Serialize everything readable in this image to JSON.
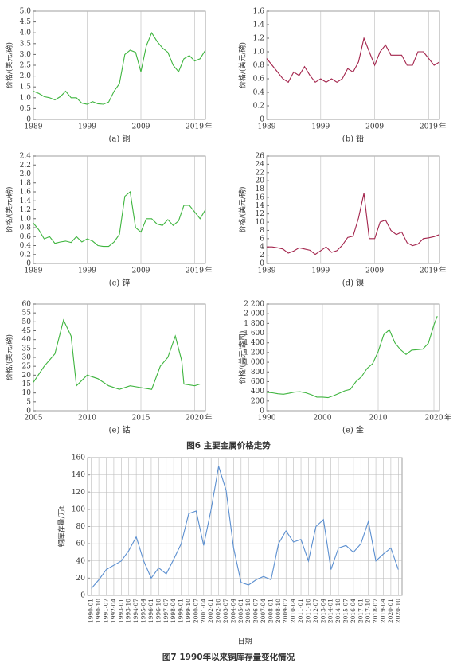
{
  "figure_captions": [
    "图6 主要金属价格走势",
    "图7 1990年以来铜库存量变化情况"
  ],
  "chart_data": [
    {
      "type": "line",
      "caption": "(a) 铜",
      "y_label": "价格/(美元/磅)",
      "x_unit": "年",
      "color": "#3fb53f",
      "grid": "x",
      "x": [
        1989,
        1990,
        1991,
        1992,
        1993,
        1994,
        1995,
        1996,
        1997,
        1998,
        1999,
        2000,
        2001,
        2002,
        2003,
        2004,
        2005,
        2006,
        2007,
        2008,
        2009,
        2010,
        2011,
        2012,
        2013,
        2014,
        2015,
        2016,
        2017,
        2018,
        2019,
        2020,
        2021
      ],
      "values": [
        1.3,
        1.2,
        1.05,
        1.0,
        0.9,
        1.05,
        1.3,
        1.0,
        1.0,
        0.75,
        0.7,
        0.82,
        0.72,
        0.7,
        0.8,
        1.3,
        1.65,
        3.0,
        3.2,
        3.1,
        2.2,
        3.4,
        4.0,
        3.6,
        3.3,
        3.1,
        2.5,
        2.2,
        2.8,
        2.95,
        2.7,
        2.8,
        3.2
      ],
      "xlim": [
        1989,
        2021
      ],
      "xticks": [
        1989,
        1999,
        2009,
        2019
      ],
      "ylim": [
        0,
        5
      ],
      "yticks": [
        0,
        0.5,
        {
          "value": 1,
          "label": "1.0"
        },
        1.5,
        {
          "value": 2,
          "label": "2.0"
        },
        2.5,
        {
          "value": 3,
          "label": "3.0"
        },
        3.5,
        {
          "value": 4,
          "label": "4.0"
        },
        4.5,
        {
          "value": 5,
          "label": "5.0"
        }
      ]
    },
    {
      "type": "line",
      "caption": "(b) 铅",
      "y_label": "价格/(美元/磅)",
      "x_unit": "年",
      "color": "#a3244c",
      "grid": "x",
      "x": [
        1989,
        1990,
        1991,
        1992,
        1993,
        1994,
        1995,
        1996,
        1997,
        1998,
        1999,
        2000,
        2001,
        2002,
        2003,
        2004,
        2005,
        2006,
        2007,
        2008,
        2009,
        2010,
        2011,
        2012,
        2013,
        2014,
        2015,
        2016,
        2017,
        2018,
        2019,
        2020,
        2021
      ],
      "values": [
        0.9,
        0.8,
        0.7,
        0.6,
        0.55,
        0.7,
        0.65,
        0.78,
        0.65,
        0.55,
        0.6,
        0.55,
        0.6,
        0.55,
        0.6,
        0.75,
        0.7,
        0.85,
        1.2,
        1.0,
        0.8,
        1.0,
        1.1,
        0.95,
        0.95,
        0.95,
        0.8,
        0.8,
        1.0,
        1.0,
        0.9,
        0.8,
        0.85
      ],
      "xlim": [
        1989,
        2021
      ],
      "xticks": [
        1989,
        1999,
        2009,
        2019
      ],
      "ylim": [
        0,
        1.6
      ],
      "yticks": [
        0,
        0.2,
        0.4,
        0.6,
        0.8,
        {
          "value": 1,
          "label": "1.0"
        },
        1.2,
        1.4,
        1.6
      ]
    },
    {
      "type": "line",
      "caption": "(c) 锌",
      "y_label": "价格/(美元/磅)",
      "x_unit": "年",
      "color": "#3fb53f",
      "grid": "x",
      "x": [
        1989,
        1990,
        1991,
        1992,
        1993,
        1994,
        1995,
        1996,
        1997,
        1998,
        1999,
        2000,
        2001,
        2002,
        2003,
        2004,
        2005,
        2006,
        2007,
        2008,
        2009,
        2010,
        2011,
        2012,
        2013,
        2014,
        2015,
        2016,
        2017,
        2018,
        2019,
        2020,
        2021
      ],
      "values": [
        0.9,
        0.75,
        0.55,
        0.6,
        0.45,
        0.48,
        0.5,
        0.47,
        0.6,
        0.48,
        0.55,
        0.5,
        0.4,
        0.38,
        0.38,
        0.48,
        0.65,
        1.5,
        1.6,
        0.8,
        0.7,
        1.0,
        1.0,
        0.88,
        0.85,
        0.98,
        0.85,
        0.95,
        1.3,
        1.3,
        1.15,
        1.0,
        1.2
      ],
      "xlim": [
        1989,
        2021
      ],
      "xticks": [
        1989,
        1999,
        2009,
        2019
      ],
      "ylim": [
        0,
        2.4
      ],
      "yticks": [
        0,
        0.2,
        0.4,
        0.6,
        0.8,
        {
          "value": 1,
          "label": "1.0"
        },
        1.2,
        1.4,
        1.6,
        1.8,
        {
          "value": 2,
          "label": "2.0"
        },
        2.2,
        2.4
      ]
    },
    {
      "type": "line",
      "caption": "(d) 镍",
      "y_label": "价格/(美元/磅)",
      "x_unit": "年",
      "color": "#a3244c",
      "grid": "x",
      "x": [
        1989,
        1990,
        1991,
        1992,
        1993,
        1994,
        1995,
        1996,
        1997,
        1998,
        1999,
        2000,
        2001,
        2002,
        2003,
        2004,
        2005,
        2006,
        2007,
        2008,
        2009,
        2010,
        2011,
        2012,
        2013,
        2014,
        2015,
        2016,
        2017,
        2018,
        2019,
        2020,
        2021
      ],
      "values": [
        4,
        4,
        3.8,
        3.5,
        2.5,
        3,
        3.8,
        3.5,
        3.2,
        2.2,
        3.1,
        4,
        2.7,
        3.1,
        4.4,
        6.3,
        6.6,
        11,
        17,
        6,
        6,
        10,
        10.5,
        8,
        7,
        7.6,
        5,
        4.3,
        4.7,
        6,
        6.2,
        6.5,
        7
      ],
      "xlim": [
        1989,
        2021
      ],
      "xticks": [
        1989,
        1999,
        2009,
        2019
      ],
      "ylim": [
        0,
        26
      ],
      "yticks": [
        0,
        2,
        4,
        6,
        8,
        10,
        12,
        14,
        16,
        18,
        20,
        22,
        24,
        26
      ]
    },
    {
      "type": "line",
      "caption": "(e) 钴",
      "y_label": "价格/(美元/磅)",
      "x_unit": "年",
      "color": "#3fb53f",
      "grid": "x",
      "x": [
        2005,
        2006,
        2007,
        2007.8,
        2008.5,
        2009,
        2010,
        2011,
        2012,
        2013,
        2014,
        2015,
        2016,
        2016.8,
        2017.5,
        2018.2,
        2018.8,
        2019,
        2020,
        2020.5
      ],
      "values": [
        16,
        25,
        32,
        51,
        42,
        14,
        20,
        18,
        14,
        12,
        14,
        13,
        12,
        25,
        30,
        42,
        28,
        15,
        14,
        15
      ],
      "xlim": [
        2005,
        2021
      ],
      "xticks": [
        2005,
        2010,
        2015,
        2020
      ],
      "ylim": [
        0,
        60
      ],
      "yticks": [
        0,
        5,
        10,
        15,
        20,
        25,
        30,
        35,
        40,
        45,
        50,
        55,
        60
      ]
    },
    {
      "type": "line",
      "caption": "(e) 金",
      "y_label": "价格/(美元/盎司)",
      "x_unit": "年",
      "color": "#3fb53f",
      "grid": "x",
      "x": [
        1990,
        1991,
        1992,
        1993,
        1994,
        1995,
        1996,
        1997,
        1998,
        1999,
        2000,
        2001,
        2002,
        2003,
        2004,
        2005,
        2006,
        2007,
        2008,
        2009,
        2010,
        2011,
        2012,
        2013,
        2014,
        2015,
        2016,
        2017,
        2018,
        2019,
        2020,
        2020.6
      ],
      "values": [
        380,
        370,
        350,
        340,
        360,
        385,
        390,
        370,
        330,
        280,
        280,
        270,
        310,
        360,
        410,
        440,
        600,
        700,
        870,
        970,
        1220,
        1570,
        1670,
        1400,
        1260,
        1160,
        1250,
        1260,
        1270,
        1390,
        1770,
        1950
      ],
      "xlim": [
        1990,
        2021
      ],
      "xticks": [
        1990,
        2000,
        2010,
        2020
      ],
      "ylim": [
        0,
        2200
      ],
      "yticks": [
        0,
        200,
        400,
        600,
        800,
        {
          "value": 1000,
          "label": "1 000"
        },
        {
          "value": 1200,
          "label": "1 200"
        },
        {
          "value": 1400,
          "label": "1 400"
        },
        {
          "value": 1600,
          "label": "1 600"
        },
        {
          "value": 1800,
          "label": "1 800"
        },
        {
          "value": 2000,
          "label": "2 000"
        },
        {
          "value": 2200,
          "label": "2 200"
        }
      ]
    },
    {
      "type": "category-line",
      "y_label": "铜库存量/万t",
      "x_label": "日期",
      "color": "#5b8fd0",
      "grid": "both",
      "categories": [
        "1990-01",
        "1990-10",
        "1991-07",
        "1992-04",
        "1993-01",
        "1993-10",
        "1994-07",
        "1995-04",
        "1996-01",
        "1996-10",
        "1997-07",
        "1998-04",
        "1999-01",
        "1999-10",
        "2000-07",
        "2001-04",
        "2002-01",
        "2002-10",
        "2003-07",
        "2004-04",
        "2005-01",
        "2005-10",
        "2006-07",
        "2007-04",
        "2008-01",
        "2008-10",
        "2009-07",
        "2010-04",
        "2011-01",
        "2011-10",
        "2012-07",
        "2013-04",
        "2014-01",
        "2014-10",
        "2015-07",
        "2016-04",
        "2017-01",
        "2017-10",
        "2018-07",
        "2019-04",
        "2020-01",
        "2020-10"
      ],
      "values": [
        8,
        18,
        30,
        35,
        40,
        52,
        68,
        40,
        20,
        32,
        25,
        42,
        60,
        95,
        98,
        58,
        100,
        150,
        122,
        55,
        15,
        12,
        18,
        22,
        18,
        60,
        75,
        62,
        65,
        40,
        80,
        88,
        30,
        55,
        58,
        50,
        60,
        86,
        40,
        48,
        55,
        30
      ],
      "ylim": [
        0,
        160
      ],
      "yticks": [
        0,
        20,
        40,
        60,
        80,
        100,
        120,
        140,
        160
      ]
    }
  ]
}
